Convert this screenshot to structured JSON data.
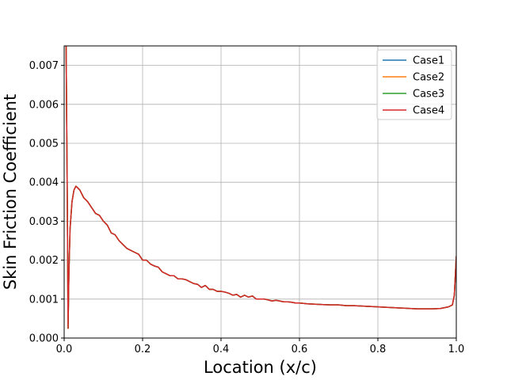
{
  "chart_data": {
    "type": "line",
    "title": "",
    "xlabel": "Location (x/c)",
    "ylabel": "Skin Friction Coefficient",
    "xlim": [
      0.0,
      1.0
    ],
    "ylim": [
      0.0,
      0.0075
    ],
    "xticks": [
      0.0,
      0.2,
      0.4,
      0.6,
      0.8,
      1.0
    ],
    "xtick_labels": [
      "0.0",
      "0.2",
      "0.4",
      "0.6",
      "0.8",
      "1.0"
    ],
    "yticks": [
      0.0,
      0.001,
      0.002,
      0.003,
      0.004,
      0.005,
      0.006,
      0.007
    ],
    "ytick_labels": [
      "0.000",
      "0.001",
      "0.002",
      "0.003",
      "0.004",
      "0.005",
      "0.006",
      "0.007"
    ],
    "grid": true,
    "legend_position": "top-right",
    "x": [
      0.005,
      0.008,
      0.01,
      0.012,
      0.015,
      0.02,
      0.025,
      0.03,
      0.035,
      0.04,
      0.05,
      0.06,
      0.07,
      0.08,
      0.09,
      0.1,
      0.11,
      0.12,
      0.13,
      0.14,
      0.15,
      0.16,
      0.17,
      0.18,
      0.19,
      0.2,
      0.21,
      0.22,
      0.23,
      0.24,
      0.25,
      0.26,
      0.27,
      0.28,
      0.29,
      0.3,
      0.31,
      0.32,
      0.33,
      0.34,
      0.35,
      0.36,
      0.37,
      0.38,
      0.39,
      0.4,
      0.41,
      0.42,
      0.43,
      0.44,
      0.45,
      0.46,
      0.47,
      0.48,
      0.49,
      0.5,
      0.51,
      0.52,
      0.53,
      0.54,
      0.55,
      0.56,
      0.57,
      0.58,
      0.59,
      0.6,
      0.62,
      0.64,
      0.66,
      0.68,
      0.7,
      0.72,
      0.74,
      0.76,
      0.78,
      0.8,
      0.82,
      0.84,
      0.86,
      0.88,
      0.9,
      0.92,
      0.94,
      0.96,
      0.97,
      0.98,
      0.99,
      0.995,
      1.0
    ],
    "series": [
      {
        "name": "Case1",
        "color": "#1f77b4",
        "values": [
          0.0075,
          0.0035,
          0.00025,
          0.0016,
          0.0028,
          0.0035,
          0.0038,
          0.0039,
          0.00385,
          0.0038,
          0.0036,
          0.0035,
          0.00335,
          0.0032,
          0.00315,
          0.003,
          0.0029,
          0.0027,
          0.00265,
          0.0025,
          0.0024,
          0.0023,
          0.00225,
          0.0022,
          0.00215,
          0.002,
          0.002,
          0.0019,
          0.00185,
          0.00182,
          0.0017,
          0.00165,
          0.0016,
          0.0016,
          0.00152,
          0.00152,
          0.0015,
          0.00145,
          0.0014,
          0.00138,
          0.0013,
          0.00135,
          0.00125,
          0.00125,
          0.0012,
          0.0012,
          0.00118,
          0.00115,
          0.0011,
          0.00112,
          0.00105,
          0.0011,
          0.00105,
          0.00108,
          0.001,
          0.001,
          0.001,
          0.00098,
          0.00095,
          0.00097,
          0.00095,
          0.00093,
          0.00093,
          0.00092,
          0.0009,
          0.0009,
          0.00088,
          0.00087,
          0.00086,
          0.00085,
          0.00085,
          0.00083,
          0.00083,
          0.00082,
          0.00081,
          0.0008,
          0.00079,
          0.00078,
          0.00077,
          0.00076,
          0.00075,
          0.00075,
          0.00075,
          0.00076,
          0.00078,
          0.0008,
          0.00085,
          0.0011,
          0.0021
        ]
      },
      {
        "name": "Case2",
        "color": "#ff7f0e",
        "values": [
          0.0075,
          0.0035,
          0.00025,
          0.0016,
          0.0028,
          0.0035,
          0.0038,
          0.0039,
          0.00385,
          0.0038,
          0.0036,
          0.0035,
          0.00335,
          0.0032,
          0.00315,
          0.003,
          0.0029,
          0.0027,
          0.00265,
          0.0025,
          0.0024,
          0.0023,
          0.00225,
          0.0022,
          0.00215,
          0.002,
          0.002,
          0.0019,
          0.00185,
          0.00182,
          0.0017,
          0.00165,
          0.0016,
          0.0016,
          0.00152,
          0.00152,
          0.0015,
          0.00145,
          0.0014,
          0.00138,
          0.0013,
          0.00135,
          0.00125,
          0.00125,
          0.0012,
          0.0012,
          0.00118,
          0.00115,
          0.0011,
          0.00112,
          0.00105,
          0.0011,
          0.00105,
          0.00108,
          0.001,
          0.001,
          0.001,
          0.00098,
          0.00095,
          0.00097,
          0.00095,
          0.00093,
          0.00093,
          0.00092,
          0.0009,
          0.0009,
          0.00088,
          0.00087,
          0.00086,
          0.00085,
          0.00085,
          0.00083,
          0.00083,
          0.00082,
          0.00081,
          0.0008,
          0.00079,
          0.00078,
          0.00077,
          0.00076,
          0.00075,
          0.00075,
          0.00075,
          0.00076,
          0.00078,
          0.0008,
          0.00085,
          0.0011,
          0.0021
        ]
      },
      {
        "name": "Case3",
        "color": "#2ca02c",
        "values": [
          0.0075,
          0.0035,
          0.00025,
          0.0016,
          0.0028,
          0.0035,
          0.0038,
          0.0039,
          0.00385,
          0.0038,
          0.0036,
          0.0035,
          0.00335,
          0.0032,
          0.00315,
          0.003,
          0.0029,
          0.0027,
          0.00265,
          0.0025,
          0.0024,
          0.0023,
          0.00225,
          0.0022,
          0.00215,
          0.002,
          0.002,
          0.0019,
          0.00185,
          0.00182,
          0.0017,
          0.00165,
          0.0016,
          0.0016,
          0.00152,
          0.00152,
          0.0015,
          0.00145,
          0.0014,
          0.00138,
          0.0013,
          0.00135,
          0.00125,
          0.00125,
          0.0012,
          0.0012,
          0.00118,
          0.00115,
          0.0011,
          0.00112,
          0.00105,
          0.0011,
          0.00105,
          0.00108,
          0.001,
          0.001,
          0.001,
          0.00098,
          0.00095,
          0.00097,
          0.00095,
          0.00093,
          0.00093,
          0.00092,
          0.0009,
          0.0009,
          0.00088,
          0.00087,
          0.00086,
          0.00085,
          0.00085,
          0.00083,
          0.00083,
          0.00082,
          0.00081,
          0.0008,
          0.00079,
          0.00078,
          0.00077,
          0.00076,
          0.00075,
          0.00075,
          0.00075,
          0.00076,
          0.00078,
          0.0008,
          0.00085,
          0.0011,
          0.0021
        ]
      },
      {
        "name": "Case4",
        "color": "#d62728",
        "values": [
          0.0075,
          0.0035,
          0.00025,
          0.0016,
          0.0028,
          0.0035,
          0.0038,
          0.0039,
          0.00385,
          0.0038,
          0.0036,
          0.0035,
          0.00335,
          0.0032,
          0.00315,
          0.003,
          0.0029,
          0.0027,
          0.00265,
          0.0025,
          0.0024,
          0.0023,
          0.00225,
          0.0022,
          0.00215,
          0.002,
          0.002,
          0.0019,
          0.00185,
          0.00182,
          0.0017,
          0.00165,
          0.0016,
          0.0016,
          0.00152,
          0.00152,
          0.0015,
          0.00145,
          0.0014,
          0.00138,
          0.0013,
          0.00135,
          0.00125,
          0.00125,
          0.0012,
          0.0012,
          0.00118,
          0.00115,
          0.0011,
          0.00112,
          0.00105,
          0.0011,
          0.00105,
          0.00108,
          0.001,
          0.001,
          0.001,
          0.00098,
          0.00095,
          0.00097,
          0.00095,
          0.00093,
          0.00093,
          0.00092,
          0.0009,
          0.0009,
          0.00088,
          0.00087,
          0.00086,
          0.00085,
          0.00085,
          0.00083,
          0.00083,
          0.00082,
          0.00081,
          0.0008,
          0.00079,
          0.00078,
          0.00077,
          0.00076,
          0.00075,
          0.00075,
          0.00075,
          0.00076,
          0.00078,
          0.0008,
          0.00085,
          0.0011,
          0.0021
        ]
      }
    ]
  }
}
